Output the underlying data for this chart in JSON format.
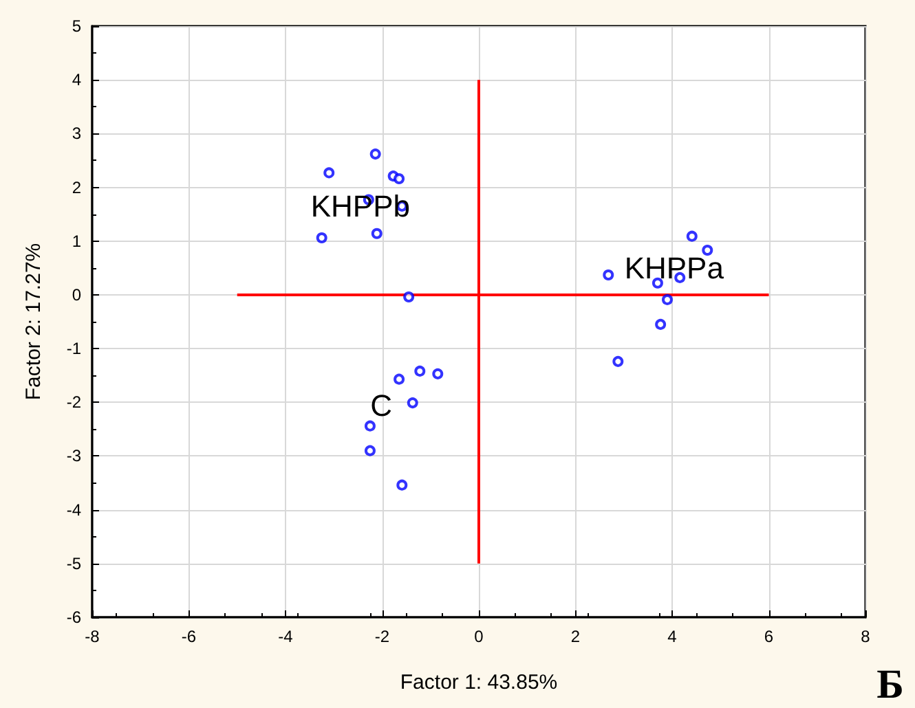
{
  "chart_data": {
    "type": "scatter",
    "xlabel": "Factor 1: 43.85%",
    "ylabel": "Factor 2: 17.27%",
    "xlim": [
      -8,
      8
    ],
    "xticks": [
      -8,
      -6,
      -4,
      -2,
      0,
      2,
      4,
      6,
      8
    ],
    "ylim": [
      -6,
      5
    ],
    "yticks": [
      -6,
      -5,
      -4,
      -3,
      -2,
      -1,
      0,
      1,
      2,
      3,
      4,
      5
    ],
    "grid": true,
    "marker": "circle",
    "series": [
      {
        "color": "#0000ff",
        "x": [
          -3.1,
          -2.14,
          -1.77,
          -1.65,
          -2.28,
          -1.59,
          -3.25,
          -2.11,
          -1.45,
          4.41,
          4.73,
          2.68,
          3.7,
          4.16,
          3.9,
          3.76,
          2.88,
          -1.65,
          -1.22,
          -0.85,
          -1.37,
          -2.25,
          -2.25,
          -1.59
        ],
        "values": [
          2.27,
          2.62,
          2.21,
          2.16,
          1.77,
          1.65,
          1.06,
          1.14,
          -0.04,
          1.09,
          0.83,
          0.37,
          0.22,
          0.32,
          -0.09,
          -0.55,
          -1.24,
          -1.57,
          -1.42,
          -1.47,
          -2.01,
          -2.44,
          -2.9,
          -3.54
        ]
      },
      {
        "type": "line",
        "color": "#ff0000",
        "marker": "none",
        "x": [
          0,
          0
        ],
        "values": [
          -5,
          4
        ]
      },
      {
        "type": "line",
        "color": "#ff0000",
        "marker": "none",
        "x": [
          -5,
          6
        ],
        "values": [
          0,
          0
        ]
      }
    ],
    "annotations": [
      {
        "text": "KHPPb",
        "x": -2.45,
        "y": 1.65
      },
      {
        "text": "KHPPa",
        "x": 4.04,
        "y": 0.5
      },
      "C",
      "Б"
    ]
  }
}
